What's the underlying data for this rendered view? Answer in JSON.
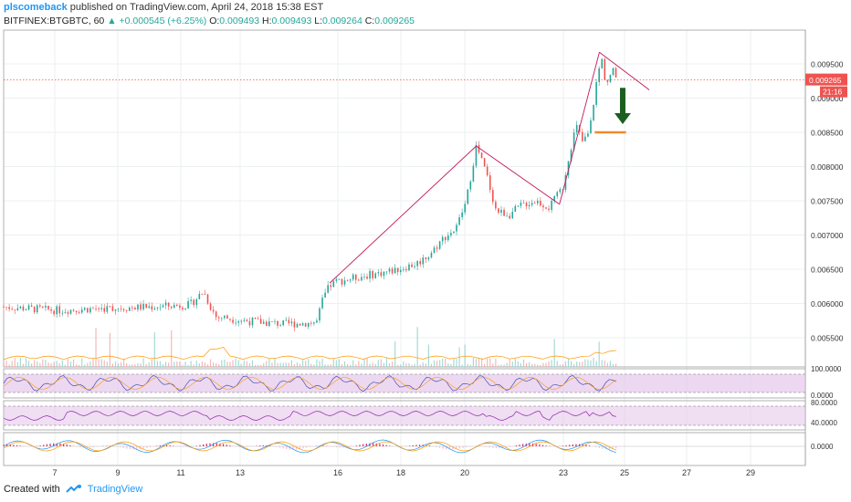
{
  "header": {
    "author": "plscomeback",
    "published": "published on TradingView.com, April 24, 2018 15:38 EST",
    "symbol": "BITFINEX:BTGBTC, 60",
    "change": "+0.000545 (+6.25%)",
    "o_label": "O:",
    "o": "0.009493",
    "h_label": "H:",
    "h": "0.009493",
    "l_label": "L:",
    "l": "0.009264",
    "c_label": "C:",
    "c": "0.009265"
  },
  "footer": {
    "created_with": "Created with",
    "brand": "TradingView"
  },
  "colors": {
    "up": "#26a69a",
    "down": "#ef5350",
    "trend": "#c2185b",
    "target": "#ef8a2e",
    "arrow": "#1b5e20",
    "price_tag": "#ef5350",
    "osc_fill": "#e1bee7"
  },
  "chart_data": {
    "type": "candlestick",
    "x_ticks": [
      "7",
      "9",
      "11",
      "13",
      "16",
      "18",
      "20",
      "23",
      "25",
      "27",
      "29"
    ],
    "y_ticks": [
      "0.009500",
      "0.009000",
      "0.008500",
      "0.008000",
      "0.007500",
      "0.007000",
      "0.006500",
      "0.006000",
      "0.005500"
    ],
    "ylim": [
      0.0053,
      0.0099
    ],
    "last_price": "0.009265",
    "countdown": "21:16",
    "path": [
      [
        0,
        0.00595
      ],
      [
        8,
        0.0059
      ],
      [
        15,
        0.00593
      ],
      [
        22,
        0.00595
      ],
      [
        28,
        0.00598
      ],
      [
        30,
        0.00618
      ],
      [
        31,
        0.00597
      ],
      [
        32,
        0.00579
      ],
      [
        33,
        0.0058
      ],
      [
        36,
        0.00575
      ],
      [
        42,
        0.0057
      ],
      [
        47,
        0.00572
      ],
      [
        48,
        0.00608
      ],
      [
        49,
        0.00626
      ],
      [
        50,
        0.00632
      ],
      [
        54,
        0.0064
      ],
      [
        58,
        0.00647
      ],
      [
        62,
        0.00658
      ],
      [
        64,
        0.00672
      ],
      [
        66,
        0.00695
      ],
      [
        68,
        0.0071
      ],
      [
        69.5,
        0.0075
      ],
      [
        71,
        0.0083
      ],
      [
        72.5,
        0.0079
      ],
      [
        74,
        0.00735
      ],
      [
        76,
        0.0073
      ],
      [
        78,
        0.00745
      ],
      [
        80,
        0.0075
      ],
      [
        82,
        0.0074
      ],
      [
        84,
        0.0077
      ],
      [
        85,
        0.0082
      ],
      [
        86,
        0.0086
      ],
      [
        87,
        0.00835
      ],
      [
        88,
        0.0085
      ],
      [
        89,
        0.0092
      ],
      [
        89.8,
        0.0096
      ],
      [
        90.5,
        0.0092
      ],
      [
        91.5,
        0.0094
      ],
      [
        92.3,
        0.00925
      ]
    ],
    "trendlines": [
      {
        "from": [
          49,
          0.0063
        ],
        "to": [
          71,
          0.0083
        ]
      },
      {
        "from": [
          71,
          0.0083
        ],
        "to": [
          83.5,
          0.00745
        ]
      },
      {
        "from": [
          83.5,
          0.00745
        ],
        "to": [
          89.5,
          0.00967
        ]
      },
      {
        "from": [
          89.5,
          0.00967
        ],
        "to": [
          97,
          0.00912
        ]
      }
    ],
    "target_level": {
      "from": 88.8,
      "to": 93.5,
      "y": 0.0085
    },
    "arrow": {
      "x": 93,
      "from": 0.00915,
      "to": 0.00862
    },
    "osc1": {
      "ticks": [
        "100.0000",
        "0.0000"
      ]
    },
    "osc2": {
      "ticks": [
        "80.0000",
        "40.0000"
      ]
    },
    "osc3": {
      "ticks": [
        "0.0000"
      ]
    }
  }
}
